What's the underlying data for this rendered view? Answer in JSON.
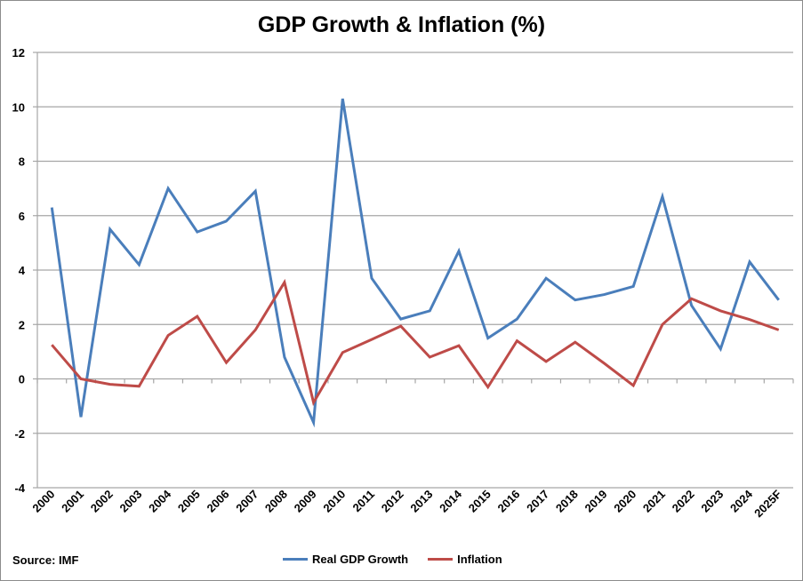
{
  "chart_data": {
    "type": "line",
    "title": "GDP Growth & Inflation (%)",
    "xlabel": "",
    "ylabel": "",
    "categories": [
      "2000",
      "2001",
      "2002",
      "2003",
      "2004",
      "2005",
      "2006",
      "2007",
      "2008",
      "2009",
      "2010",
      "2011",
      "2012",
      "2013",
      "2014",
      "2015",
      "2016",
      "2017",
      "2018",
      "2019",
      "2020",
      "2021",
      "2022",
      "2023",
      "2024",
      "2025F"
    ],
    "ylim": [
      -4,
      12
    ],
    "yticks": [
      -4,
      -2,
      0,
      2,
      4,
      6,
      8,
      10,
      12
    ],
    "grid": true,
    "legend_position": "bottom",
    "series": [
      {
        "name": "Real GDP Growth",
        "color": "#4a7ebb",
        "values": [
          6.3,
          -1.4,
          5.5,
          4.2,
          7.0,
          5.4,
          5.8,
          6.9,
          0.8,
          -1.6,
          10.3,
          3.7,
          2.2,
          2.5,
          4.7,
          1.5,
          2.2,
          3.7,
          2.9,
          3.1,
          3.4,
          6.7,
          2.7,
          1.1,
          4.3,
          2.9
        ]
      },
      {
        "name": "Inflation",
        "color": "#be4b48",
        "values": [
          1.25,
          0.0,
          -0.2,
          -0.27,
          1.6,
          2.3,
          0.6,
          1.8,
          3.55,
          -0.87,
          0.97,
          1.45,
          1.94,
          0.8,
          1.22,
          -0.3,
          1.4,
          0.64,
          1.35,
          0.57,
          -0.24,
          2.0,
          2.95,
          2.5,
          2.18,
          1.8
        ]
      }
    ],
    "source": "Source: IMF"
  }
}
